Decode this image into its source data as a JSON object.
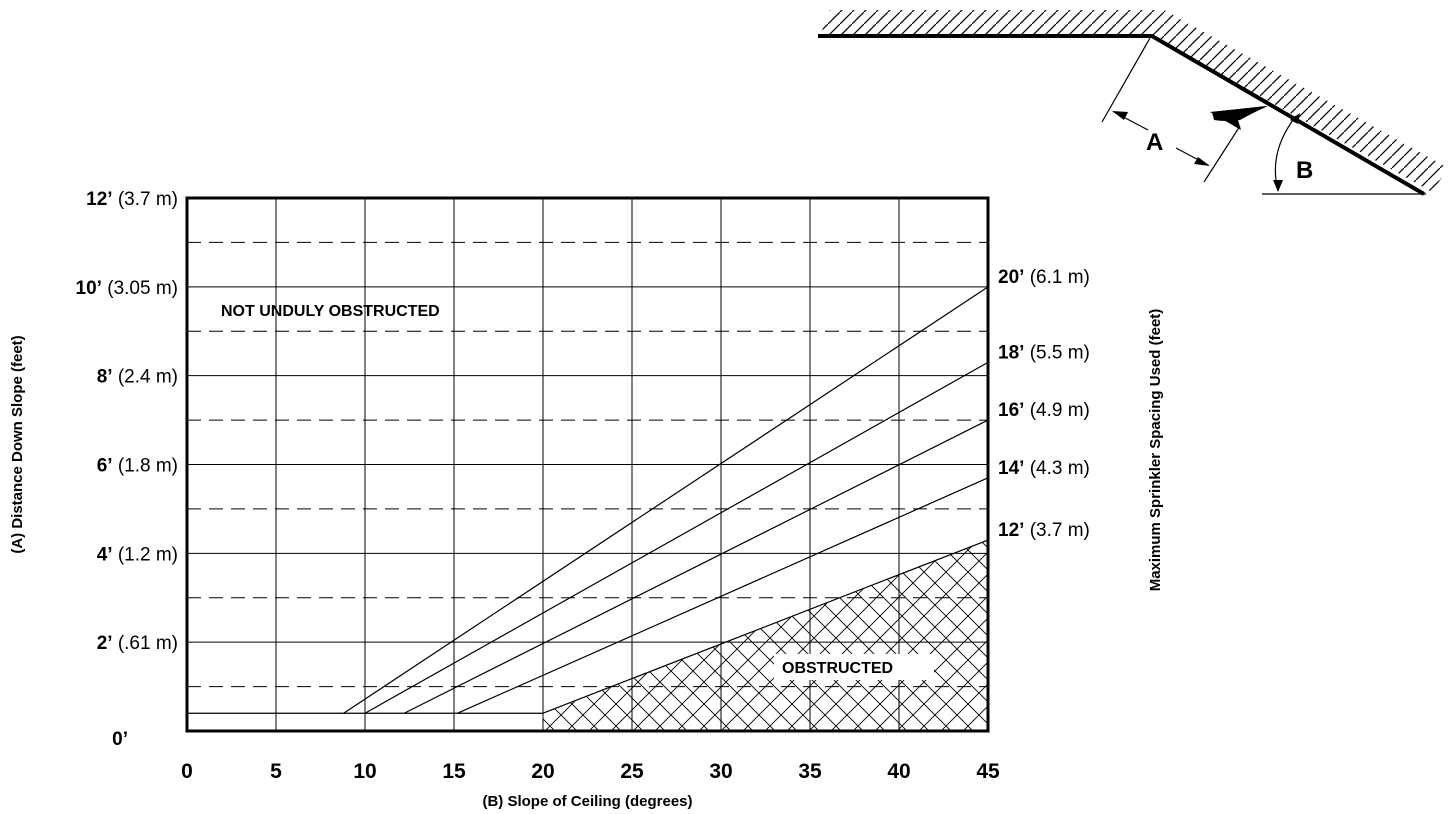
{
  "chart_data": {
    "type": "line",
    "xlabel": "(B) Slope of Ceiling (degrees)",
    "ylabel": "(A) Distance Down Slope (feet)",
    "y2label": "Maximum Sprinkler Spacing Used (feet)",
    "xlim": [
      0,
      45
    ],
    "ylim": [
      0,
      12
    ],
    "x_ticks": [
      "0",
      "5",
      "10",
      "15",
      "20",
      "25",
      "30",
      "35",
      "40",
      "45"
    ],
    "x_tick_values": [
      0,
      5,
      10,
      15,
      20,
      25,
      30,
      35,
      40,
      45
    ],
    "y_ticks": [
      {
        "value": 12,
        "ft": "12’",
        "m": "(3.7 m)"
      },
      {
        "value": 10,
        "ft": "10’",
        "m": "(3.05 m)"
      },
      {
        "value": 8,
        "ft": "8’",
        "m": "(2.4 m)"
      },
      {
        "value": 6,
        "ft": "6’",
        "m": "(1.8 m)"
      },
      {
        "value": 4,
        "ft": "4’",
        "m": "(1.2 m)"
      },
      {
        "value": 2,
        "ft": "2’",
        "m": "(.61 m)"
      },
      {
        "value": 0,
        "ft": "0’",
        "m": ""
      }
    ],
    "dashed_gridlines_at": [
      1,
      3,
      5,
      7,
      9,
      11
    ],
    "baseline_y": 0.4,
    "series": [
      {
        "name": "20’",
        "name_m": "(6.1 m)",
        "x": [
          0,
          8.8,
          45
        ],
        "y": [
          0.4,
          0.4,
          10.0
        ]
      },
      {
        "name": "18’",
        "name_m": "(5.5 m)",
        "x": [
          0,
          10.0,
          45
        ],
        "y": [
          0.4,
          0.4,
          8.3
        ]
      },
      {
        "name": "16’",
        "name_m": "(4.9 m)",
        "x": [
          0,
          12.2,
          45
        ],
        "y": [
          0.4,
          0.4,
          7.0
        ]
      },
      {
        "name": "14’",
        "name_m": "(4.3 m)",
        "x": [
          0,
          15.2,
          45
        ],
        "y": [
          0.4,
          0.4,
          5.7
        ]
      },
      {
        "name": "12’",
        "name_m": "(3.7 m)",
        "x": [
          0,
          20.0,
          45
        ],
        "y": [
          0.4,
          0.4,
          4.3
        ]
      }
    ],
    "regions": {
      "not_obstructed": "NOT UNDULY OBSTRUCTED",
      "obstructed": "OBSTRUCTED"
    },
    "grid": true
  },
  "diagram": {
    "label_a": "A",
    "label_b": "B"
  }
}
